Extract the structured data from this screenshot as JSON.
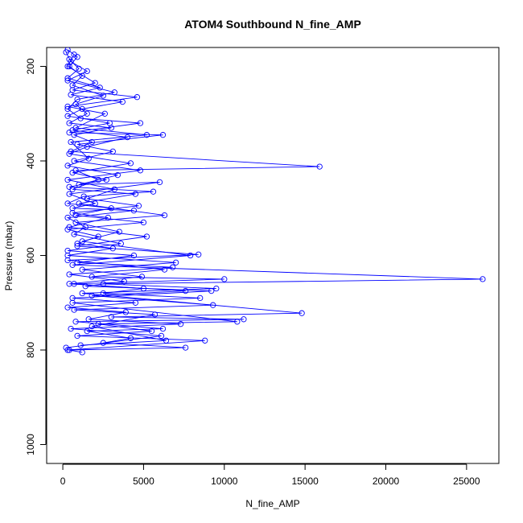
{
  "chart_data": {
    "type": "line",
    "title": "ATOM4 Southbound N_fine_AMP",
    "xlabel": "N_fine_AMP",
    "ylabel": "Pressure (mbar)",
    "xlim": [
      -1000,
      27000
    ],
    "ylim": [
      1040,
      160
    ],
    "y_reversed": true,
    "x_ticks": [
      0,
      5000,
      10000,
      15000,
      20000,
      25000
    ],
    "x_tick_labels": [
      "0",
      "5000",
      "10000",
      "15000",
      "20000",
      "25000"
    ],
    "y_ticks": [
      200,
      400,
      600,
      800,
      1000
    ],
    "y_tick_labels": [
      "200",
      "400",
      "600",
      "800",
      "1000"
    ],
    "grid": false,
    "series": [
      {
        "color": "#0000ff",
        "marker": "open-circle",
        "points": [
          [
            300,
            165
          ],
          [
            900,
            180
          ],
          [
            400,
            200
          ],
          [
            1200,
            220
          ],
          [
            600,
            240
          ],
          [
            2500,
            262
          ],
          [
            800,
            280
          ],
          [
            1500,
            300
          ],
          [
            400,
            320
          ],
          [
            3000,
            330
          ],
          [
            700,
            345
          ],
          [
            1800,
            360
          ],
          [
            500,
            380
          ],
          [
            15900,
            412
          ],
          [
            800,
            420
          ],
          [
            2200,
            440
          ],
          [
            600,
            460
          ],
          [
            4500,
            470
          ],
          [
            1000,
            490
          ],
          [
            6300,
            515
          ],
          [
            800,
            530
          ],
          [
            3500,
            550
          ],
          [
            1200,
            570
          ],
          [
            7900,
            600
          ],
          [
            600,
            620
          ],
          [
            26000,
            650
          ],
          [
            2500,
            660
          ],
          [
            9500,
            670
          ],
          [
            1200,
            680
          ],
          [
            14800,
            722
          ],
          [
            3000,
            730
          ],
          [
            11200,
            735
          ],
          [
            800,
            740
          ],
          [
            6200,
            755
          ],
          [
            1500,
            760
          ],
          [
            4200,
            775
          ],
          [
            2500,
            785
          ],
          [
            7600,
            795
          ],
          [
            400,
            800
          ],
          [
            1200,
            805
          ]
        ]
      },
      {
        "color": "#0000ff",
        "marker": "open-circle",
        "points": [
          [
            200,
            170
          ],
          [
            500,
            190
          ],
          [
            1500,
            210
          ],
          [
            300,
            230
          ],
          [
            3200,
            255
          ],
          [
            900,
            270
          ],
          [
            300,
            290
          ],
          [
            1100,
            310
          ],
          [
            4800,
            320
          ],
          [
            400,
            340
          ],
          [
            6200,
            345
          ],
          [
            900,
            365
          ],
          [
            3100,
            380
          ],
          [
            700,
            400
          ],
          [
            4800,
            420
          ],
          [
            300,
            440
          ],
          [
            3200,
            460
          ],
          [
            1500,
            480
          ],
          [
            4700,
            495
          ],
          [
            600,
            510
          ],
          [
            2800,
            520
          ],
          [
            400,
            540
          ],
          [
            5200,
            560
          ],
          [
            900,
            580
          ],
          [
            8400,
            598
          ],
          [
            300,
            610
          ],
          [
            6300,
            630
          ],
          [
            1800,
            645
          ],
          [
            10000,
            650
          ],
          [
            700,
            660
          ],
          [
            5000,
            670
          ],
          [
            2500,
            680
          ],
          [
            8500,
            690
          ],
          [
            600,
            700
          ],
          [
            10800,
            740
          ],
          [
            2200,
            745
          ],
          [
            5500,
            760
          ],
          [
            900,
            770
          ],
          [
            8800,
            780
          ],
          [
            300,
            800
          ]
        ]
      },
      {
        "color": "#0000ff",
        "marker": "open-circle",
        "points": [
          [
            700,
            175
          ],
          [
            300,
            200
          ],
          [
            2000,
            235
          ],
          [
            600,
            250
          ],
          [
            4600,
            265
          ],
          [
            300,
            285
          ],
          [
            2600,
            300
          ],
          [
            800,
            330
          ],
          [
            5200,
            345
          ],
          [
            500,
            360
          ],
          [
            1600,
            395
          ],
          [
            300,
            410
          ],
          [
            3400,
            430
          ],
          [
            1000,
            450
          ],
          [
            6000,
            445
          ],
          [
            400,
            470
          ],
          [
            2000,
            490
          ],
          [
            600,
            500
          ],
          [
            4400,
            505
          ],
          [
            300,
            520
          ],
          [
            1400,
            540
          ],
          [
            700,
            555
          ],
          [
            3600,
            575
          ],
          [
            300,
            590
          ],
          [
            4400,
            600
          ],
          [
            900,
            615
          ],
          [
            6800,
            625
          ],
          [
            400,
            640
          ],
          [
            3800,
            655
          ],
          [
            1400,
            665
          ],
          [
            9200,
            675
          ],
          [
            600,
            690
          ],
          [
            4500,
            700
          ],
          [
            300,
            710
          ],
          [
            3900,
            720
          ],
          [
            1600,
            735
          ],
          [
            7300,
            745
          ],
          [
            500,
            755
          ],
          [
            6100,
            770
          ],
          [
            200,
            795
          ]
        ]
      },
      {
        "color": "#0000ff",
        "marker": "open-circle",
        "points": [
          [
            400,
            185
          ],
          [
            1000,
            205
          ],
          [
            300,
            225
          ],
          [
            2300,
            245
          ],
          [
            500,
            260
          ],
          [
            3700,
            275
          ],
          [
            1200,
            290
          ],
          [
            300,
            305
          ],
          [
            2900,
            320
          ],
          [
            600,
            335
          ],
          [
            4000,
            350
          ],
          [
            1500,
            370
          ],
          [
            400,
            385
          ],
          [
            4200,
            405
          ],
          [
            600,
            425
          ],
          [
            2700,
            440
          ],
          [
            400,
            455
          ],
          [
            5600,
            465
          ],
          [
            1300,
            475
          ],
          [
            300,
            490
          ],
          [
            3000,
            500
          ],
          [
            800,
            515
          ],
          [
            5000,
            530
          ],
          [
            300,
            545
          ],
          [
            2200,
            560
          ],
          [
            900,
            575
          ],
          [
            3100,
            585
          ],
          [
            300,
            600
          ],
          [
            7000,
            615
          ],
          [
            1200,
            630
          ],
          [
            4900,
            645
          ],
          [
            400,
            660
          ],
          [
            7600,
            675
          ],
          [
            1800,
            685
          ],
          [
            9300,
            705
          ],
          [
            700,
            715
          ],
          [
            5700,
            725
          ],
          [
            1800,
            750
          ],
          [
            6400,
            780
          ],
          [
            1100,
            790
          ]
        ]
      }
    ]
  }
}
